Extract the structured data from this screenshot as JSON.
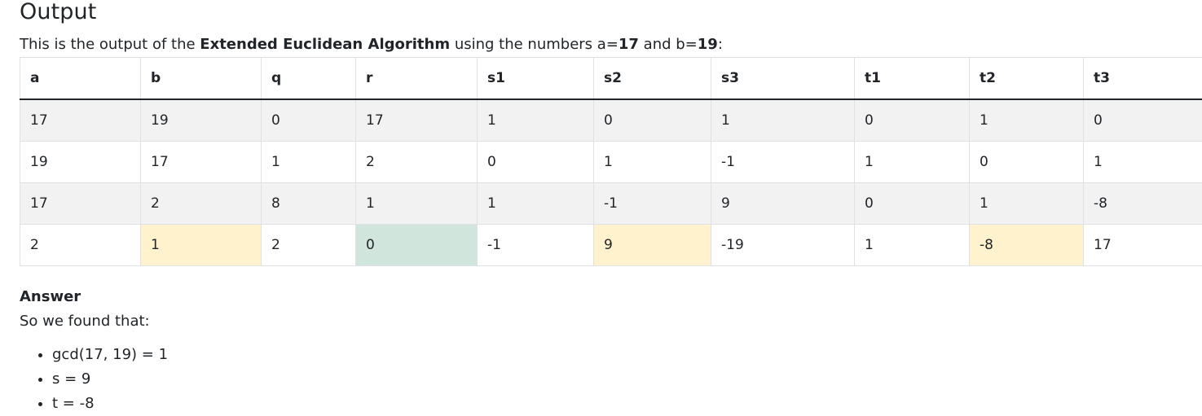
{
  "heading": "Output",
  "intro": {
    "prefix": "This is the output of the ",
    "algorithm": "Extended Euclidean Algorithm",
    "middle": " using the numbers a=",
    "a": "17",
    "and": " and b=",
    "b": "19",
    "suffix": ":"
  },
  "table": {
    "columns": [
      "a",
      "b",
      "q",
      "r",
      "s1",
      "s2",
      "s3",
      "t1",
      "t2",
      "t3"
    ],
    "rows": [
      [
        "17",
        "19",
        "0",
        "17",
        "1",
        "0",
        "1",
        "0",
        "1",
        "0"
      ],
      [
        "19",
        "17",
        "1",
        "2",
        "0",
        "1",
        "-1",
        "1",
        "0",
        "1"
      ],
      [
        "17",
        "2",
        "8",
        "1",
        "1",
        "-1",
        "9",
        "0",
        "1",
        "-8"
      ],
      [
        "2",
        "1",
        "2",
        "0",
        "-1",
        "9",
        "-19",
        "1",
        "-8",
        "17"
      ]
    ],
    "highlight_colors": {
      "warning": "#fff2cc",
      "success": "#d0e6dd"
    }
  },
  "answer": {
    "title": "Answer",
    "subtitle": "So we found that:",
    "items": [
      "gcd(17, 19) = 1",
      "s = 9",
      "t = -8"
    ]
  }
}
